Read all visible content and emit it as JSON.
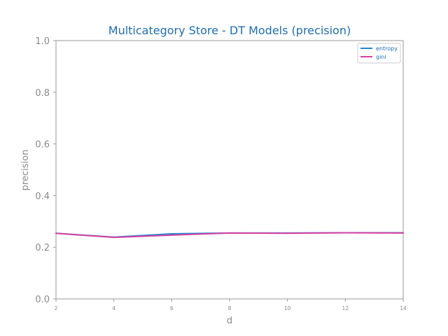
{
  "chart_data": {
    "type": "line",
    "title": "Multicategory Store - DT Models (precision)",
    "xlabel": "d",
    "ylabel": "precision",
    "x": [
      2,
      4,
      6,
      8,
      10,
      12,
      14
    ],
    "xticks": [
      "2",
      "4",
      "6",
      "8",
      "10",
      "12",
      "14"
    ],
    "yticks": [
      "0.0",
      "0.2",
      "0.4",
      "0.6",
      "0.8",
      "1.0"
    ],
    "xlim": [
      2,
      14
    ],
    "ylim": [
      0,
      1
    ],
    "grid": false,
    "legend_position": "top-right",
    "series": [
      {
        "name": "entropy",
        "color": "#1f8ad6",
        "values": [
          0.254,
          0.239,
          0.252,
          0.255,
          0.255,
          0.256,
          0.256
        ]
      },
      {
        "name": "gini",
        "color": "#d63fa0",
        "values": [
          0.254,
          0.238,
          0.247,
          0.255,
          0.254,
          0.256,
          0.255
        ]
      }
    ],
    "colors": {
      "title": "#1f6fb2",
      "axis": "#9a9a9a",
      "text": "#8a8a8a",
      "legend_text": "#1f6fb2"
    }
  }
}
